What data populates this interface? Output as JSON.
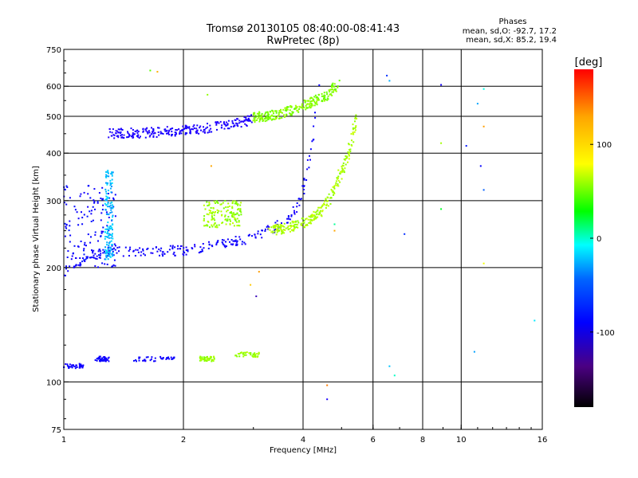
{
  "chart_data": {
    "type": "scatter",
    "title": "Tromsø 20130105 08:40:00-08:41:43",
    "subtitle": "RwPretec (8p)",
    "xlabel": "Frequency [MHz]",
    "ylabel": "Stationary phase Virtual Height [km]",
    "x_scale": "log",
    "y_scale": "log",
    "xlim": [
      1,
      16
    ],
    "ylim": [
      75,
      750
    ],
    "x_ticks": [
      {
        "value": 1,
        "label": "1"
      },
      {
        "value": 2,
        "label": "2"
      },
      {
        "value": 4,
        "label": "4"
      },
      {
        "value": 6,
        "label": "6"
      },
      {
        "value": 8,
        "label": "8"
      },
      {
        "value": 10,
        "label": "10"
      },
      {
        "value": 16,
        "label": "16"
      }
    ],
    "x_gridlines": [
      2,
      4,
      6,
      8,
      10
    ],
    "y_ticks": [
      {
        "value": 75,
        "label": "75"
      },
      {
        "value": 100,
        "label": "100"
      },
      {
        "value": 200,
        "label": "200"
      },
      {
        "value": 300,
        "label": "300"
      },
      {
        "value": 400,
        "label": "400"
      },
      {
        "value": 500,
        "label": "500"
      },
      {
        "value": 600,
        "label": "600"
      },
      {
        "value": 750,
        "label": "750"
      }
    ],
    "y_gridlines": [
      100,
      200,
      300,
      400,
      500,
      600
    ],
    "stats": {
      "header": "Phases",
      "line_o": "mean, sd,O: -92.7, 17.2",
      "line_x": "mean, sd,X:  85.2, 19.4"
    },
    "colorbar": {
      "label": "[deg]",
      "range": [
        -180,
        180
      ],
      "ticks": [
        {
          "value": 100,
          "label": "100"
        },
        {
          "value": 0,
          "label": "0"
        },
        {
          "value": -100,
          "label": "-100"
        }
      ]
    },
    "series": [
      {
        "name": "O-mode E-layer echoes",
        "phase_deg": -100,
        "segments": [
          [
            1.0,
            110,
            1.12,
            110
          ],
          [
            1.2,
            115,
            1.3,
            116
          ],
          [
            1.5,
            115,
            1.9,
            115
          ]
        ]
      },
      {
        "name": "X-mode E-layer echoes",
        "phase_deg": 85,
        "segments": [
          [
            2.2,
            115,
            2.4,
            115
          ],
          [
            2.7,
            118,
            3.1,
            118
          ]
        ]
      },
      {
        "name": "O-mode F-layer trace",
        "phase_deg": -100,
        "curve": [
          [
            1.0,
            190
          ],
          [
            1.05,
            205
          ],
          [
            1.15,
            215
          ],
          [
            1.3,
            220
          ],
          [
            1.6,
            220
          ],
          [
            2.0,
            222
          ],
          [
            2.5,
            230
          ],
          [
            3.0,
            240
          ],
          [
            3.4,
            255
          ],
          [
            3.7,
            270
          ],
          [
            3.9,
            290
          ],
          [
            4.0,
            320
          ],
          [
            4.1,
            360
          ],
          [
            4.2,
            420
          ],
          [
            4.3,
            520
          ],
          [
            4.4,
            640
          ]
        ]
      },
      {
        "name": "X-mode F-layer trace",
        "phase_deg": 90,
        "curve": [
          [
            3.3,
            250
          ],
          [
            3.7,
            255
          ],
          [
            4.1,
            265
          ],
          [
            4.5,
            285
          ],
          [
            4.8,
            320
          ],
          [
            5.0,
            360
          ],
          [
            5.2,
            400
          ],
          [
            5.35,
            450
          ],
          [
            5.5,
            520
          ]
        ]
      },
      {
        "name": "O-mode spread F band",
        "phase_deg": -110,
        "curve": [
          [
            1.3,
            450
          ],
          [
            1.6,
            452
          ],
          [
            1.9,
            458
          ],
          [
            2.2,
            462
          ],
          [
            2.6,
            475
          ],
          [
            3.0,
            490
          ]
        ]
      },
      {
        "name": "Multi-hop echoes",
        "phase_deg": 80,
        "curve": [
          [
            3.0,
            495
          ],
          [
            3.4,
            505
          ],
          [
            3.8,
            520
          ],
          [
            4.2,
            545
          ],
          [
            4.6,
            570
          ],
          [
            4.9,
            610
          ]
        ]
      },
      {
        "name": "Low-frequency O spread",
        "phase_deg": -95,
        "region": [
          1.0,
          1.35,
          200,
          330
        ]
      },
      {
        "name": "Cyan spike near 1.3 MHz",
        "phase_deg": -40,
        "region": [
          1.27,
          1.33,
          210,
          360
        ]
      },
      {
        "name": "X-mode cluster 2.2-3 MHz",
        "phase_deg": 85,
        "region": [
          2.25,
          2.8,
          255,
          300
        ]
      },
      {
        "name": "Scattered noise",
        "phase_deg": 0,
        "points": [
          [
            1.65,
            660
          ],
          [
            1.72,
            655
          ],
          [
            2.35,
            370
          ],
          [
            2.3,
            570
          ],
          [
            2.95,
            180
          ],
          [
            3.05,
            168
          ],
          [
            3.1,
            195
          ],
          [
            4.6,
            90
          ],
          [
            4.6,
            98
          ],
          [
            4.8,
            260
          ],
          [
            4.8,
            250
          ],
          [
            6.5,
            640
          ],
          [
            6.6,
            620
          ],
          [
            6.6,
            110
          ],
          [
            6.8,
            104
          ],
          [
            7.2,
            245
          ],
          [
            8.9,
            425
          ],
          [
            8.9,
            605
          ],
          [
            8.9,
            285
          ],
          [
            10.3,
            418
          ],
          [
            10.8,
            120
          ],
          [
            11.0,
            540
          ],
          [
            11.2,
            370
          ],
          [
            11.4,
            320
          ],
          [
            11.4,
            205
          ],
          [
            11.4,
            470
          ],
          [
            11.4,
            590
          ],
          [
            15.3,
            145
          ]
        ]
      }
    ]
  }
}
